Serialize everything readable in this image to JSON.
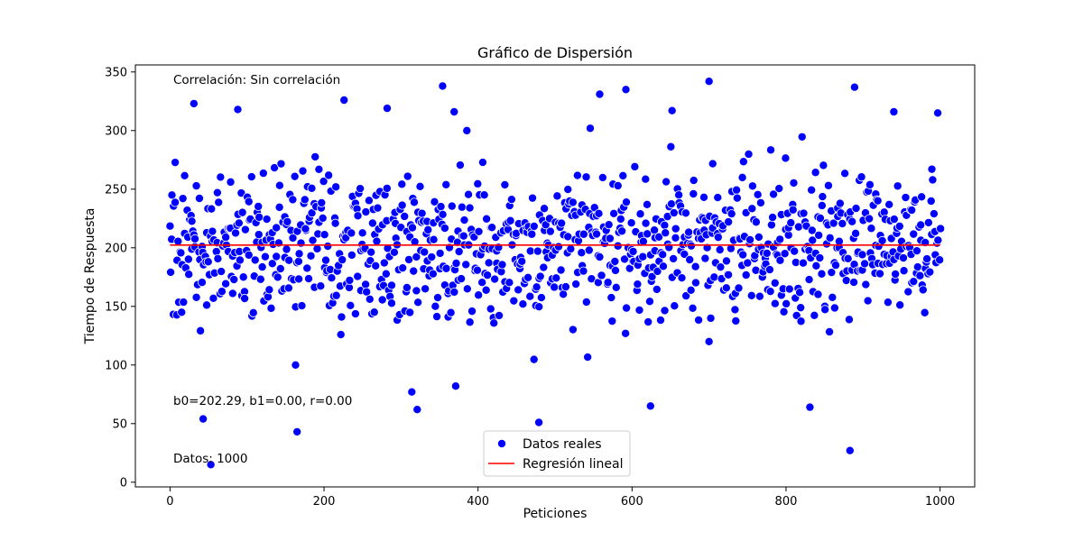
{
  "chart_data": {
    "type": "scatter",
    "title": "Gráfico de Dispersión",
    "xlabel": "Peticiones",
    "ylabel": "Tiempo de Respuesta",
    "xlim": [
      -45,
      1045
    ],
    "ylim": [
      -4,
      356
    ],
    "x_ticks": [
      0,
      200,
      400,
      600,
      800,
      1000
    ],
    "y_ticks": [
      0,
      50,
      100,
      150,
      200,
      250,
      300,
      350
    ],
    "grid": false,
    "legend_position": "lower-center",
    "annotations": {
      "correlation": "Correlación: Sin correlación",
      "coefficients": "b0=202.29, b1=0.00, r=0.00",
      "count": "Datos: 1000"
    },
    "series": [
      {
        "name": "Datos reales",
        "kind": "scatter",
        "color": "#0000ff",
        "outlier_points": [
          [
            31,
            323
          ],
          [
            43,
            54
          ],
          [
            53,
            15
          ],
          [
            165,
            43
          ],
          [
            226,
            326
          ],
          [
            321,
            62
          ],
          [
            354,
            338
          ],
          [
            369,
            316
          ],
          [
            479,
            51
          ],
          [
            558,
            331
          ],
          [
            592,
            335
          ],
          [
            624,
            65
          ],
          [
            700,
            342
          ],
          [
            831,
            64
          ],
          [
            883,
            27
          ],
          [
            889,
            337
          ],
          [
            940,
            316
          ],
          [
            997,
            315
          ],
          [
            282,
            319
          ],
          [
            88,
            318
          ],
          [
            314,
            77
          ],
          [
            163,
            100
          ],
          [
            371,
            82
          ],
          [
            652,
            317
          ],
          [
            700,
            120
          ]
        ],
        "sample_count": 1000,
        "sample_seed": 20240611,
        "sample_range": [
          90,
          310
        ],
        "sample_center": 202
      },
      {
        "name": "Regresión lineal",
        "kind": "line",
        "color": "#ff0000",
        "points": [
          [
            0,
            202.29
          ],
          [
            1000,
            202.29
          ]
        ]
      }
    ]
  }
}
